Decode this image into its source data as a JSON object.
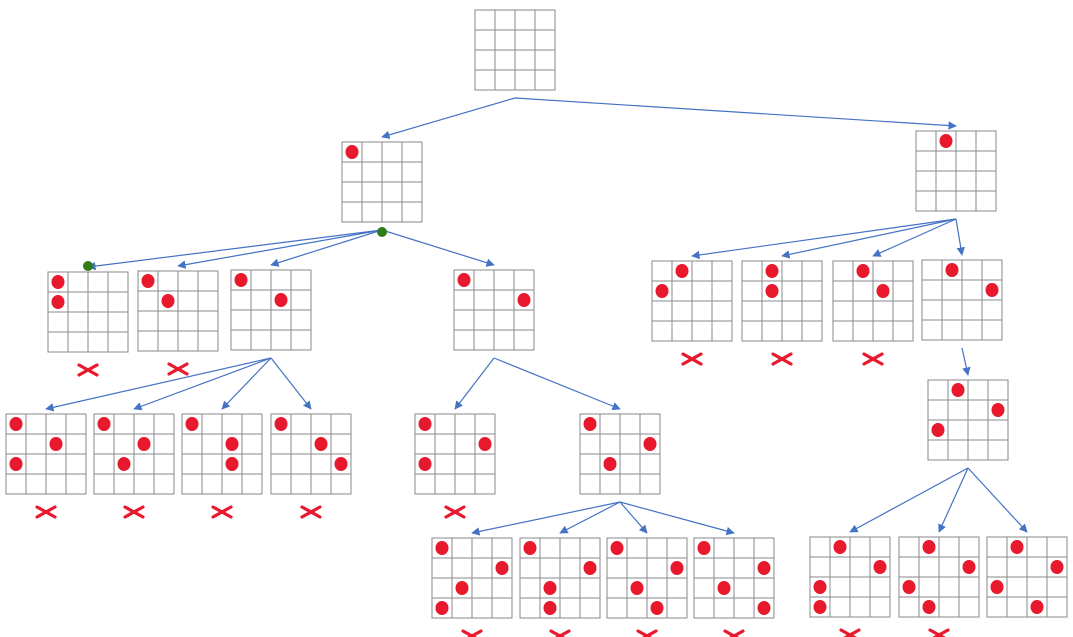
{
  "colors": {
    "grid_line": "#8a8a8a",
    "edge": "#4472c4",
    "queen": "#e8192c",
    "reject_mark": "#e8192c",
    "branch_dot": "#2e7d18"
  },
  "board": {
    "rows": 4,
    "cols": 4
  },
  "nodes": [
    {
      "id": "root",
      "queens": [],
      "rejected": false
    },
    {
      "id": "c0",
      "queens": [
        [
          0,
          0
        ]
      ],
      "rejected": false
    },
    {
      "id": "c1",
      "queens": [
        [
          0,
          1
        ]
      ],
      "rejected": false
    },
    {
      "id": "c0-a",
      "queens": [
        [
          0,
          0
        ],
        [
          1,
          0
        ]
      ],
      "rejected": true
    },
    {
      "id": "c0-b",
      "queens": [
        [
          0,
          0
        ],
        [
          1,
          1
        ]
      ],
      "rejected": true
    },
    {
      "id": "c0-c",
      "queens": [
        [
          0,
          0
        ],
        [
          1,
          2
        ]
      ],
      "rejected": false
    },
    {
      "id": "c0-d",
      "queens": [
        [
          0,
          0
        ],
        [
          1,
          3
        ]
      ],
      "rejected": false
    },
    {
      "id": "c0-c-a",
      "queens": [
        [
          0,
          0
        ],
        [
          1,
          2
        ],
        [
          2,
          0
        ]
      ],
      "rejected": true
    },
    {
      "id": "c0-c-b",
      "queens": [
        [
          0,
          0
        ],
        [
          1,
          2
        ],
        [
          2,
          1
        ]
      ],
      "rejected": true
    },
    {
      "id": "c0-c-c",
      "queens": [
        [
          0,
          0
        ],
        [
          1,
          2
        ],
        [
          2,
          2
        ]
      ],
      "rejected": true
    },
    {
      "id": "c0-c-d",
      "queens": [
        [
          0,
          0
        ],
        [
          1,
          2
        ],
        [
          2,
          3
        ]
      ],
      "rejected": true
    },
    {
      "id": "c0-d-a",
      "queens": [
        [
          0,
          0
        ],
        [
          1,
          3
        ],
        [
          2,
          0
        ]
      ],
      "rejected": true
    },
    {
      "id": "c0-d-b",
      "queens": [
        [
          0,
          0
        ],
        [
          1,
          3
        ],
        [
          2,
          1
        ]
      ],
      "rejected": false
    },
    {
      "id": "c0-d-b-a",
      "queens": [
        [
          0,
          0
        ],
        [
          1,
          3
        ],
        [
          2,
          1
        ],
        [
          3,
          0
        ]
      ],
      "rejected": true
    },
    {
      "id": "c0-d-b-b",
      "queens": [
        [
          0,
          0
        ],
        [
          1,
          3
        ],
        [
          2,
          1
        ],
        [
          3,
          1
        ]
      ],
      "rejected": true
    },
    {
      "id": "c0-d-b-c",
      "queens": [
        [
          0,
          0
        ],
        [
          1,
          3
        ],
        [
          2,
          1
        ],
        [
          3,
          2
        ]
      ],
      "rejected": true
    },
    {
      "id": "c0-d-b-d",
      "queens": [
        [
          0,
          0
        ],
        [
          1,
          3
        ],
        [
          2,
          1
        ],
        [
          3,
          3
        ]
      ],
      "rejected": true
    },
    {
      "id": "c1-a",
      "queens": [
        [
          0,
          1
        ],
        [
          1,
          0
        ]
      ],
      "rejected": true
    },
    {
      "id": "c1-b",
      "queens": [
        [
          0,
          1
        ],
        [
          1,
          1
        ]
      ],
      "rejected": true
    },
    {
      "id": "c1-c",
      "queens": [
        [
          0,
          1
        ],
        [
          1,
          2
        ]
      ],
      "rejected": true
    },
    {
      "id": "c1-d",
      "queens": [
        [
          0,
          1
        ],
        [
          1,
          3
        ]
      ],
      "rejected": false
    },
    {
      "id": "c1-d-a",
      "queens": [
        [
          0,
          1
        ],
        [
          1,
          3
        ],
        [
          2,
          0
        ]
      ],
      "rejected": false
    },
    {
      "id": "c1-d-a-a",
      "queens": [
        [
          0,
          1
        ],
        [
          1,
          3
        ],
        [
          2,
          0
        ],
        [
          3,
          0
        ]
      ],
      "rejected": true
    },
    {
      "id": "c1-d-a-b",
      "queens": [
        [
          0,
          1
        ],
        [
          1,
          3
        ],
        [
          2,
          0
        ],
        [
          3,
          1
        ]
      ],
      "rejected": true
    },
    {
      "id": "c1-d-a-c",
      "queens": [
        [
          0,
          1
        ],
        [
          1,
          3
        ],
        [
          2,
          0
        ],
        [
          3,
          2
        ]
      ],
      "rejected": false
    }
  ],
  "edges": [
    [
      "root",
      "c0"
    ],
    [
      "root",
      "c1"
    ],
    [
      "c0",
      "c0-a"
    ],
    [
      "c0",
      "c0-b"
    ],
    [
      "c0",
      "c0-c"
    ],
    [
      "c0",
      "c0-d"
    ],
    [
      "c0-c",
      "c0-c-a"
    ],
    [
      "c0-c",
      "c0-c-b"
    ],
    [
      "c0-c",
      "c0-c-c"
    ],
    [
      "c0-c",
      "c0-c-d"
    ],
    [
      "c0-d",
      "c0-d-a"
    ],
    [
      "c0-d",
      "c0-d-b"
    ],
    [
      "c0-d-b",
      "c0-d-b-a"
    ],
    [
      "c0-d-b",
      "c0-d-b-b"
    ],
    [
      "c0-d-b",
      "c0-d-b-c"
    ],
    [
      "c0-d-b",
      "c0-d-b-d"
    ],
    [
      "c1",
      "c1-a"
    ],
    [
      "c1",
      "c1-b"
    ],
    [
      "c1",
      "c1-c"
    ],
    [
      "c1",
      "c1-d"
    ],
    [
      "c1-d",
      "c1-d-a"
    ],
    [
      "c1-d-a",
      "c1-d-a-a"
    ],
    [
      "c1-d-a",
      "c1-d-a-b"
    ],
    [
      "c1-d-a",
      "c1-d-a-c"
    ]
  ],
  "branch_markers": [
    "c0-a",
    "c0-c"
  ]
}
